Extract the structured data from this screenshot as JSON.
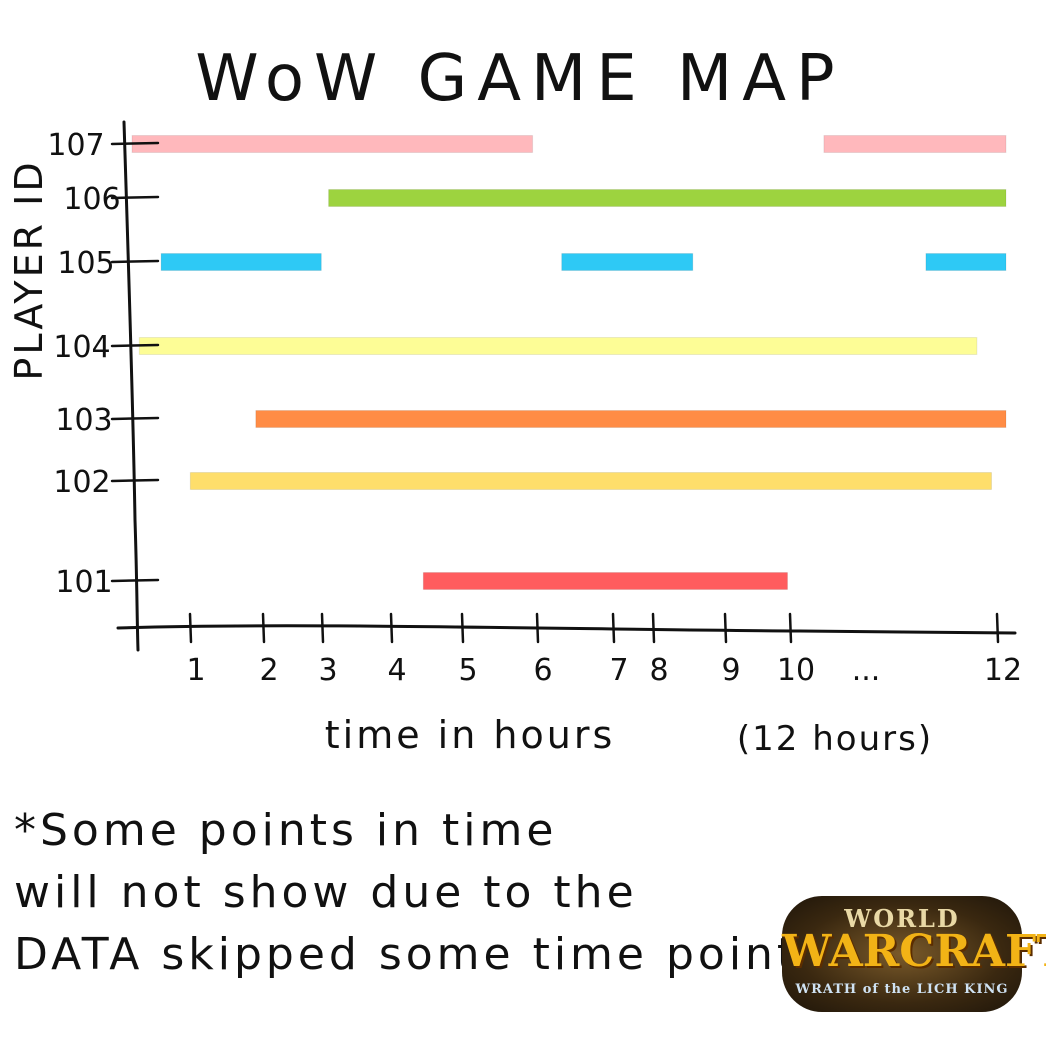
{
  "chart_data": {
    "type": "bar",
    "orientation": "horizontal-timeline",
    "title": "WoW GAME MAP",
    "xlabel": "time in hours",
    "xlabel_note": "(12 hours)",
    "ylabel": "PLAYER ID",
    "x_ticks": [
      "1",
      "2",
      "3",
      "4",
      "5",
      "6",
      "7",
      "8",
      "9",
      "10",
      "...",
      "12"
    ],
    "y_ticks": [
      "107",
      "106",
      "105",
      "104",
      "103",
      "102",
      "101"
    ],
    "xlim": [
      0,
      12
    ],
    "grid": false,
    "series": [
      {
        "player": "107",
        "color": "#ffb8bc",
        "segments": [
          [
            0,
            5.5
          ],
          [
            9.5,
            12
          ]
        ]
      },
      {
        "player": "106",
        "color": "#9dd33f",
        "segments": [
          [
            2.7,
            12
          ]
        ]
      },
      {
        "player": "105",
        "color": "#2ec9f5",
        "segments": [
          [
            0.4,
            2.6
          ],
          [
            5.9,
            7.7
          ],
          [
            10.9,
            12
          ]
        ]
      },
      {
        "player": "104",
        "color": "#fdfd96",
        "segments": [
          [
            0.1,
            11.6
          ]
        ]
      },
      {
        "player": "103",
        "color": "#ff8c45",
        "segments": [
          [
            1.7,
            12
          ]
        ]
      },
      {
        "player": "102",
        "color": "#fede6b",
        "segments": [
          [
            0.8,
            11.8
          ]
        ]
      },
      {
        "player": "101",
        "color": "#ff5c5e",
        "segments": [
          [
            4,
            9
          ]
        ]
      }
    ]
  },
  "note": {
    "lines": [
      "*Some points in time",
      "will not show due to the",
      "DATA skipped some time points."
    ]
  },
  "logo": {
    "line1": "WORLD",
    "line2": "WARCRAFT",
    "line3": "WRATH of the LICH KING"
  }
}
